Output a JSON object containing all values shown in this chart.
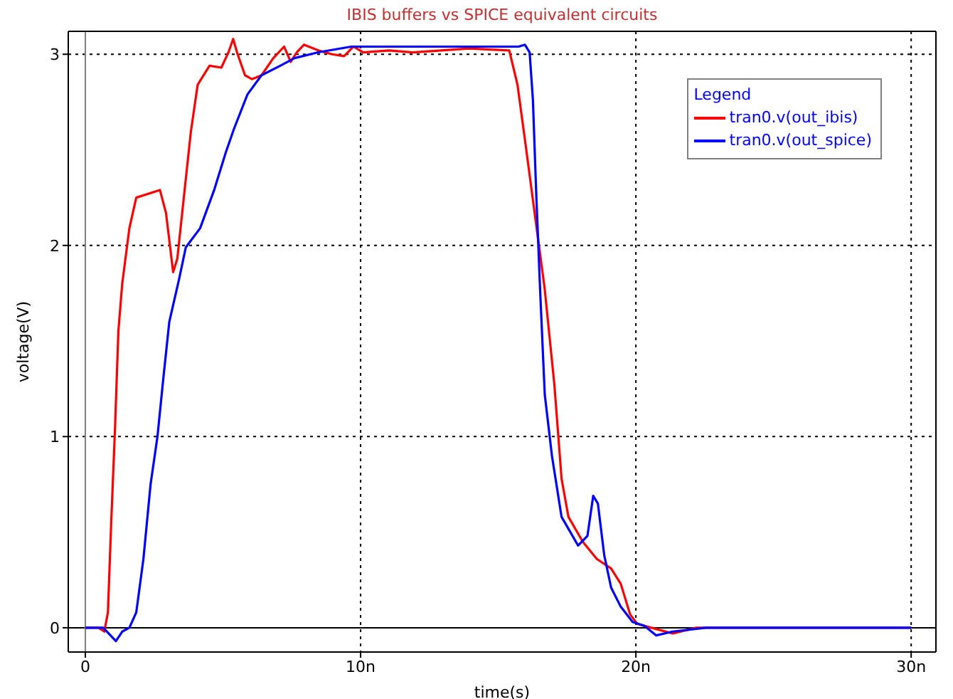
{
  "chart_data": {
    "type": "line",
    "title": "IBIS buffers vs SPICE equivalent circuits",
    "xlabel": "time(s)",
    "ylabel": "voltage(V)",
    "legend_title": "Legend",
    "legend": "top right",
    "grid": true,
    "line_style": "solid",
    "xlim": [
      -0.62,
      30.9
    ],
    "ylim": [
      -0.127,
      3.12
    ],
    "xticks": [
      0,
      {
        "value": 10,
        "label": "10n"
      },
      {
        "value": 20,
        "label": "20n"
      },
      {
        "value": 30,
        "label": "30n"
      }
    ],
    "yticks": [
      0,
      1,
      2,
      3
    ],
    "ref_lines": [
      {
        "axis": "y",
        "value": 0,
        "color": "#000000",
        "line_style": "solid"
      },
      {
        "axis": "x",
        "value": 0,
        "color": "#808080",
        "line_style": "solid"
      }
    ],
    "series": [
      {
        "name": "tran0.v(out_ibis)",
        "color": "#ff0000",
        "x": [
          0,
          0.48,
          0.69,
          0.82,
          0.94,
          1.08,
          1.2,
          1.34,
          1.6,
          1.85,
          2.71,
          2.93,
          3.19,
          3.34,
          3.57,
          3.83,
          4.08,
          4.51,
          4.94,
          5.2,
          5.37,
          5.51,
          5.8,
          6.05,
          6.4,
          6.83,
          7.22,
          7.46,
          7.68,
          7.94,
          8.46,
          8.97,
          9.4,
          9.74,
          10.09,
          11.03,
          11.9,
          13.94,
          15.4,
          15.7,
          16.0,
          16.35,
          16.69,
          17.04,
          17.3,
          17.55,
          18.07,
          18.58,
          19.1,
          19.45,
          19.79,
          20.05,
          20.56,
          21.34,
          22.2,
          24.3,
          30
        ],
        "values": [
          0,
          0,
          -0.02,
          0.08,
          0.55,
          1.05,
          1.55,
          1.8,
          2.09,
          2.25,
          2.29,
          2.17,
          1.86,
          1.93,
          2.24,
          2.59,
          2.84,
          2.94,
          2.93,
          3.01,
          3.08,
          3.01,
          2.89,
          2.87,
          2.89,
          2.98,
          3.04,
          2.96,
          3.01,
          3.05,
          3.02,
          3.0,
          2.99,
          3.04,
          3.01,
          3.02,
          3.01,
          3.03,
          3.02,
          2.84,
          2.52,
          2.14,
          1.77,
          1.27,
          0.78,
          0.58,
          0.45,
          0.36,
          0.31,
          0.23,
          0.07,
          0.02,
          0,
          -0.03,
          0,
          0,
          0
        ]
      },
      {
        "name": "tran0.v(out_spice)",
        "color": "#0000ff",
        "x": [
          0,
          0.65,
          1.11,
          1.34,
          1.6,
          1.85,
          2.11,
          2.37,
          2.62,
          2.83,
          3.05,
          3.4,
          3.65,
          4.17,
          4.68,
          5.11,
          5.4,
          5.89,
          6.4,
          7.08,
          7.6,
          8.46,
          9.66,
          11.03,
          13.94,
          15.74,
          15.97,
          16.14,
          16.26,
          16.38,
          16.52,
          16.69,
          16.95,
          17.3,
          17.9,
          18.24,
          18.45,
          18.62,
          18.85,
          19.1,
          19.45,
          19.88,
          20.31,
          20.74,
          21.34,
          22.55,
          30
        ],
        "values": [
          0,
          0,
          -0.07,
          -0.02,
          0,
          0.08,
          0.36,
          0.75,
          1.0,
          1.3,
          1.6,
          1.82,
          1.99,
          2.09,
          2.29,
          2.49,
          2.61,
          2.79,
          2.89,
          2.94,
          2.98,
          3.01,
          3.04,
          3.04,
          3.04,
          3.04,
          3.05,
          3.01,
          2.76,
          2.27,
          1.77,
          1.22,
          0.9,
          0.58,
          0.43,
          0.48,
          0.69,
          0.65,
          0.38,
          0.21,
          0.11,
          0.03,
          0.01,
          -0.04,
          -0.02,
          0,
          0
        ]
      }
    ]
  }
}
